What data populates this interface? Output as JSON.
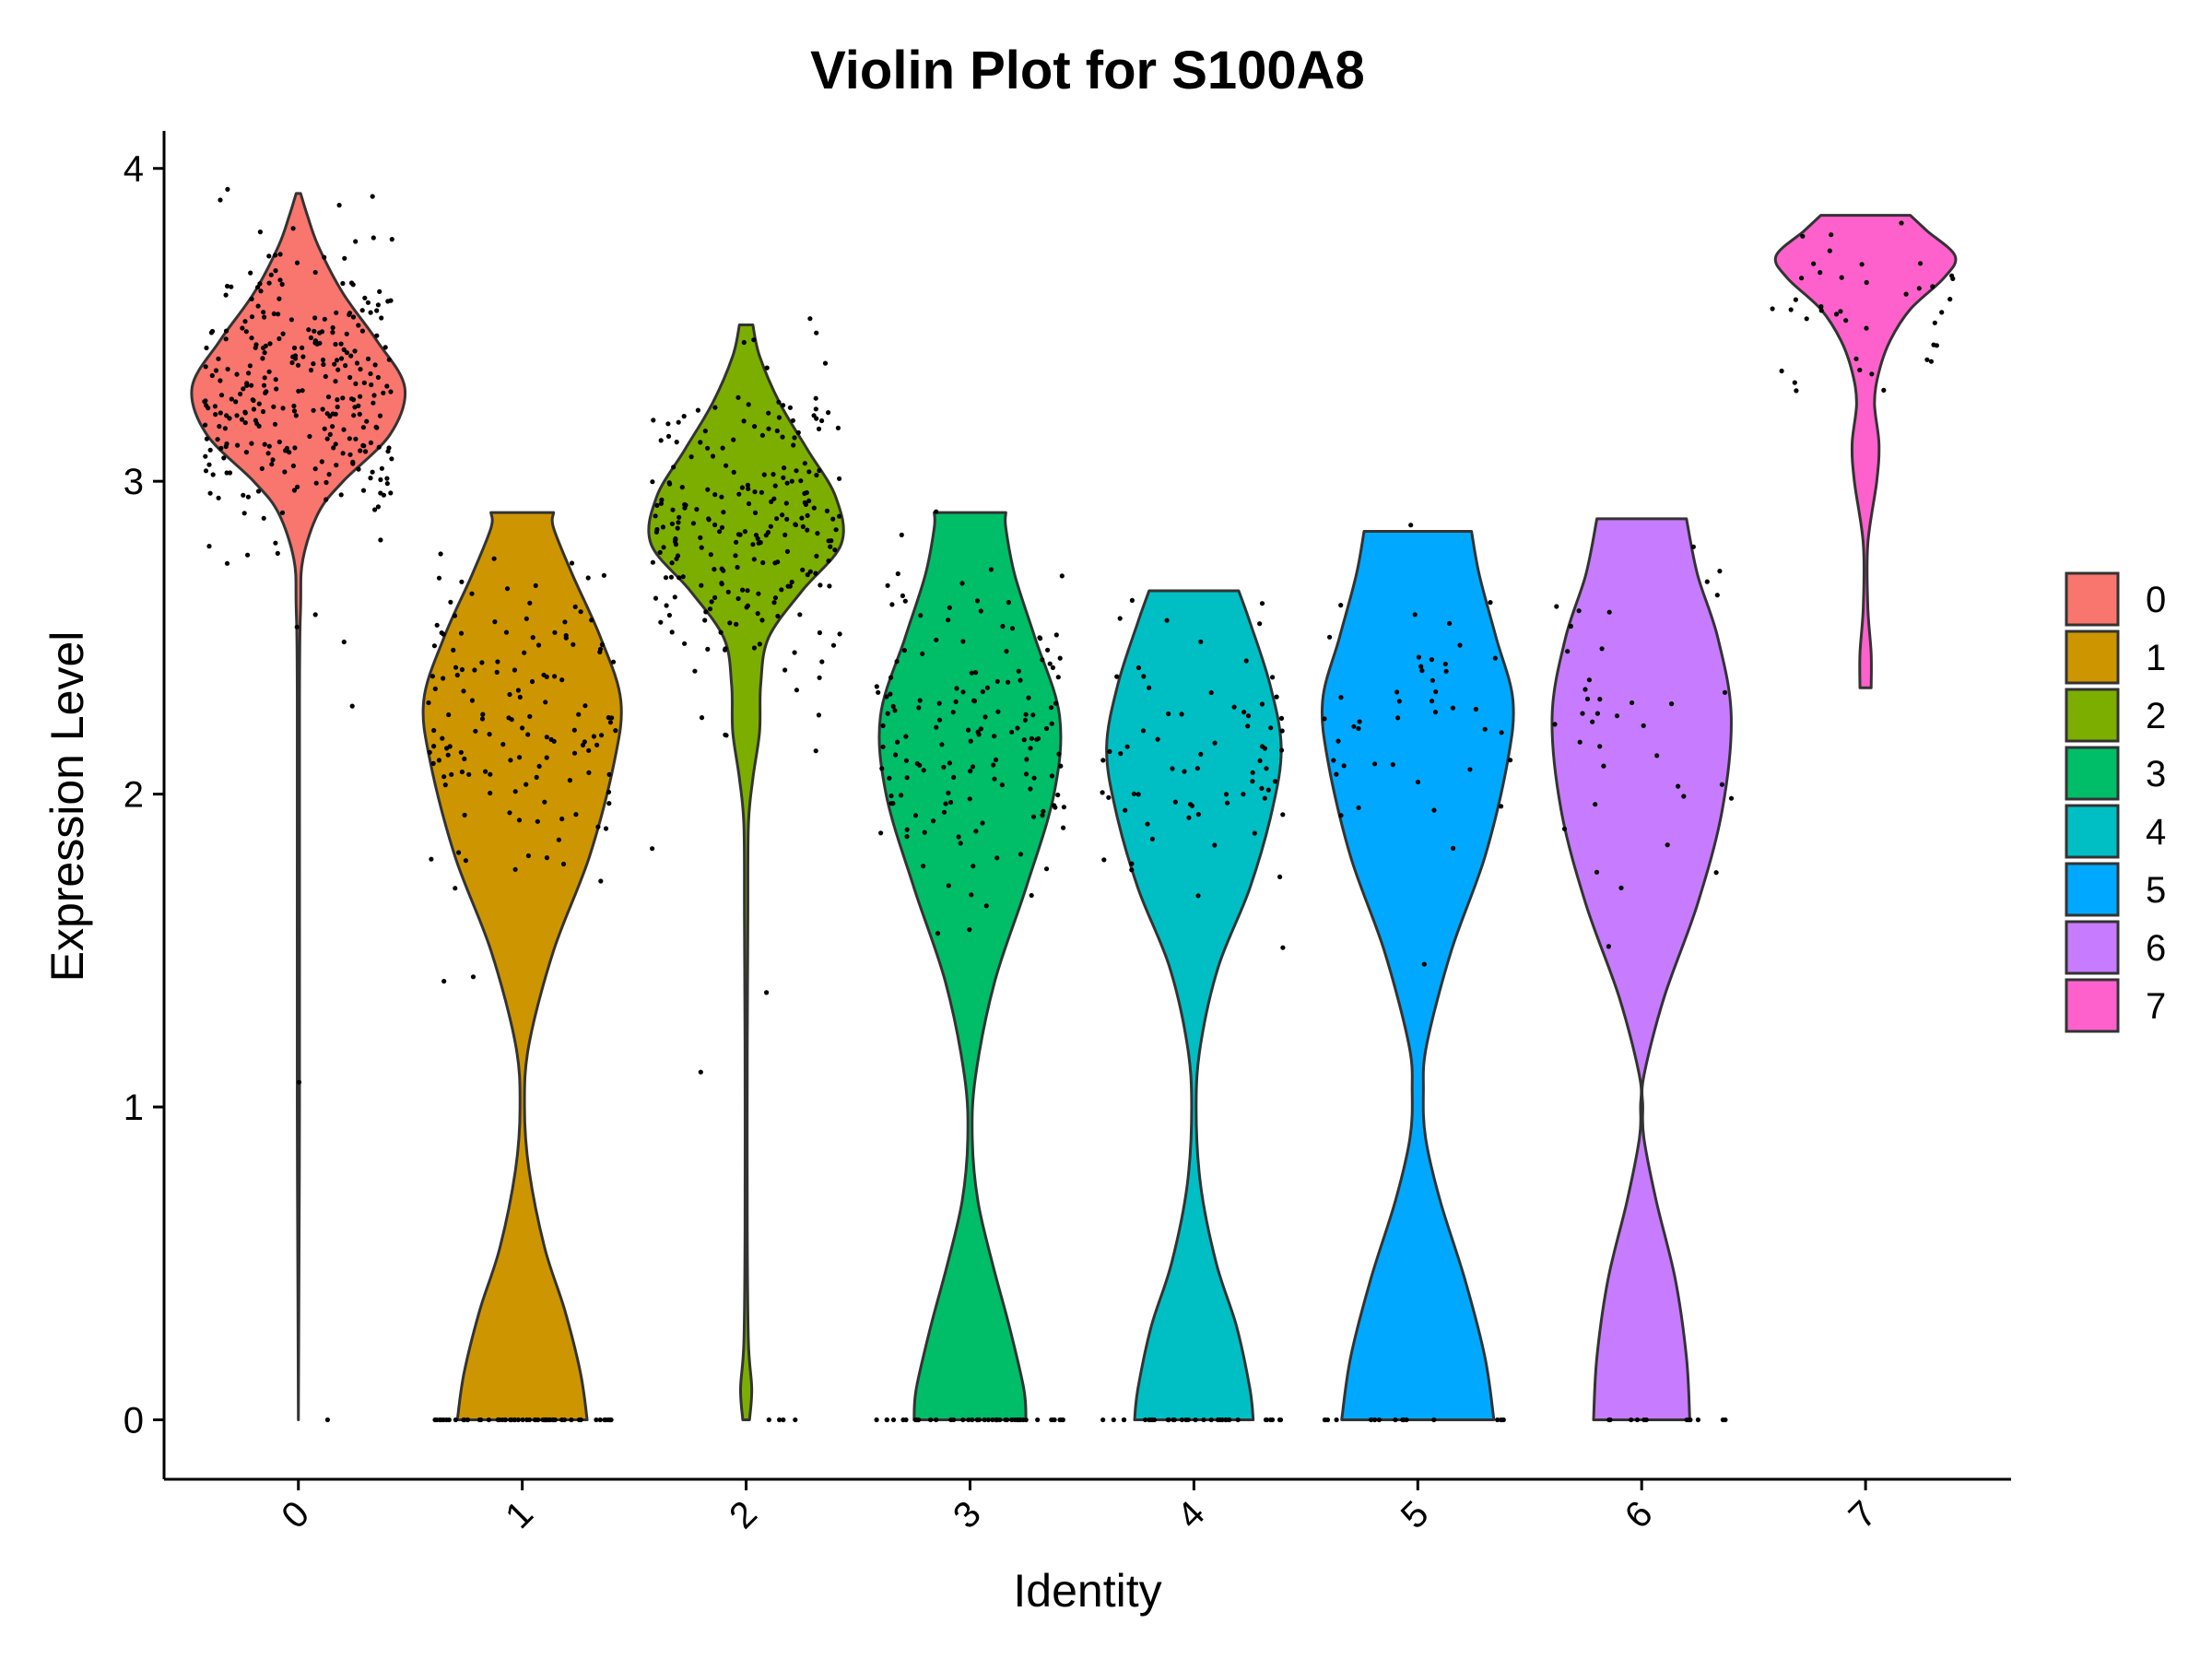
{
  "chart_data": {
    "type": "violin",
    "title": "Violin Plot for S100A8",
    "xlabel": "Identity",
    "ylabel": "Expression Level",
    "ylim": [
      -0.19,
      4.12
    ],
    "yticks": [
      "0",
      "1",
      "2",
      "3",
      "4"
    ],
    "grid": false,
    "legend_position": "right",
    "categories": [
      "0",
      "1",
      "2",
      "3",
      "4",
      "5",
      "6",
      "7"
    ],
    "colors": [
      "#F8766D",
      "#CD9600",
      "#7CAE00",
      "#00BE67",
      "#00BFC4",
      "#00A9FF",
      "#C77CFF",
      "#FF61CC"
    ],
    "violins": [
      {
        "name": "0",
        "min": 0.0,
        "max": 3.92,
        "profile": [
          [
            0.0,
            0.0
          ],
          [
            1.0,
            0.01
          ],
          [
            2.3,
            0.01
          ],
          [
            2.6,
            0.02
          ],
          [
            2.75,
            0.04
          ],
          [
            2.9,
            0.18
          ],
          [
            3.0,
            0.4
          ],
          [
            3.15,
            0.82
          ],
          [
            3.3,
            0.95
          ],
          [
            3.45,
            0.7
          ],
          [
            3.6,
            0.4
          ],
          [
            3.75,
            0.18
          ],
          [
            3.85,
            0.08
          ],
          [
            3.92,
            0.02
          ]
        ],
        "points": {
          "n_zero": 1,
          "n_spread": 300,
          "spread_center": 3.3,
          "spread_sd": 0.22,
          "n_tail": 4
        }
      },
      {
        "name": "1",
        "min": 0.0,
        "max": 2.9,
        "profile": [
          [
            0.0,
            0.58
          ],
          [
            0.15,
            0.52
          ],
          [
            0.35,
            0.38
          ],
          [
            0.55,
            0.2
          ],
          [
            0.8,
            0.06
          ],
          [
            1.0,
            0.02
          ],
          [
            1.2,
            0.06
          ],
          [
            1.5,
            0.28
          ],
          [
            1.8,
            0.6
          ],
          [
            2.1,
            0.82
          ],
          [
            2.3,
            0.88
          ],
          [
            2.5,
            0.7
          ],
          [
            2.7,
            0.45
          ],
          [
            2.85,
            0.28
          ],
          [
            2.9,
            0.28
          ]
        ],
        "points": {
          "n_zero": 60,
          "n_spread": 140,
          "spread_center": 2.25,
          "spread_sd": 0.25,
          "n_tail": 0
        }
      },
      {
        "name": "2",
        "min": 0.0,
        "max": 3.5,
        "profile": [
          [
            0.0,
            0.03
          ],
          [
            0.1,
            0.05
          ],
          [
            0.25,
            0.02
          ],
          [
            0.6,
            0.01
          ],
          [
            1.2,
            0.01
          ],
          [
            1.6,
            0.015
          ],
          [
            1.9,
            0.02
          ],
          [
            2.05,
            0.06
          ],
          [
            2.2,
            0.12
          ],
          [
            2.35,
            0.13
          ],
          [
            2.5,
            0.2
          ],
          [
            2.65,
            0.5
          ],
          [
            2.8,
            0.85
          ],
          [
            2.95,
            0.8
          ],
          [
            3.1,
            0.55
          ],
          [
            3.25,
            0.3
          ],
          [
            3.4,
            0.12
          ],
          [
            3.5,
            0.06
          ]
        ],
        "points": {
          "n_zero": 4,
          "n_spread": 230,
          "spread_center": 2.85,
          "spread_sd": 0.25,
          "n_tail": 4
        }
      },
      {
        "name": "3",
        "min": 0.0,
        "max": 2.9,
        "profile": [
          [
            0.0,
            0.5
          ],
          [
            0.1,
            0.48
          ],
          [
            0.3,
            0.35
          ],
          [
            0.5,
            0.2
          ],
          [
            0.7,
            0.07
          ],
          [
            0.9,
            0.02
          ],
          [
            1.1,
            0.05
          ],
          [
            1.4,
            0.22
          ],
          [
            1.7,
            0.5
          ],
          [
            2.0,
            0.75
          ],
          [
            2.25,
            0.8
          ],
          [
            2.5,
            0.58
          ],
          [
            2.7,
            0.4
          ],
          [
            2.85,
            0.32
          ],
          [
            2.9,
            0.32
          ]
        ],
        "points": {
          "n_zero": 45,
          "n_spread": 150,
          "spread_center": 2.15,
          "spread_sd": 0.28,
          "n_tail": 0
        }
      },
      {
        "name": "4",
        "min": 0.0,
        "max": 2.65,
        "profile": [
          [
            0.0,
            0.53
          ],
          [
            0.1,
            0.5
          ],
          [
            0.3,
            0.38
          ],
          [
            0.5,
            0.2
          ],
          [
            0.75,
            0.06
          ],
          [
            1.0,
            0.02
          ],
          [
            1.2,
            0.06
          ],
          [
            1.45,
            0.22
          ],
          [
            1.7,
            0.5
          ],
          [
            1.95,
            0.7
          ],
          [
            2.15,
            0.78
          ],
          [
            2.35,
            0.68
          ],
          [
            2.55,
            0.5
          ],
          [
            2.65,
            0.4
          ]
        ],
        "points": {
          "n_zero": 35,
          "n_spread": 70,
          "spread_center": 2.15,
          "spread_sd": 0.22,
          "n_tail": 0
        }
      },
      {
        "name": "5",
        "min": 0.0,
        "max": 2.84,
        "profile": [
          [
            0.0,
            0.68
          ],
          [
            0.2,
            0.6
          ],
          [
            0.45,
            0.42
          ],
          [
            0.7,
            0.2
          ],
          [
            0.9,
            0.07
          ],
          [
            1.05,
            0.05
          ],
          [
            1.2,
            0.08
          ],
          [
            1.5,
            0.3
          ],
          [
            1.8,
            0.6
          ],
          [
            2.1,
            0.8
          ],
          [
            2.3,
            0.85
          ],
          [
            2.5,
            0.7
          ],
          [
            2.7,
            0.55
          ],
          [
            2.84,
            0.48
          ]
        ],
        "points": {
          "n_zero": 15,
          "n_spread": 45,
          "spread_center": 2.3,
          "spread_sd": 0.25,
          "n_tail": 0
        }
      },
      {
        "name": "6",
        "min": 0.0,
        "max": 2.88,
        "profile": [
          [
            0.0,
            0.43
          ],
          [
            0.2,
            0.4
          ],
          [
            0.45,
            0.3
          ],
          [
            0.7,
            0.13
          ],
          [
            0.9,
            0.02
          ],
          [
            1.0,
            0.01
          ],
          [
            1.1,
            0.02
          ],
          [
            1.35,
            0.2
          ],
          [
            1.65,
            0.5
          ],
          [
            1.95,
            0.72
          ],
          [
            2.25,
            0.8
          ],
          [
            2.5,
            0.68
          ],
          [
            2.7,
            0.5
          ],
          [
            2.88,
            0.4
          ]
        ],
        "points": {
          "n_zero": 12,
          "n_spread": 38,
          "spread_center": 2.2,
          "spread_sd": 0.25,
          "n_tail": 0
        }
      },
      {
        "name": "7",
        "min": 2.34,
        "max": 3.85,
        "profile": [
          [
            2.34,
            0.05
          ],
          [
            2.45,
            0.05
          ],
          [
            2.6,
            0.02
          ],
          [
            2.8,
            0.02
          ],
          [
            3.0,
            0.1
          ],
          [
            3.12,
            0.12
          ],
          [
            3.25,
            0.08
          ],
          [
            3.35,
            0.12
          ],
          [
            3.45,
            0.22
          ],
          [
            3.55,
            0.4
          ],
          [
            3.65,
            0.7
          ],
          [
            3.72,
            0.8
          ],
          [
            3.8,
            0.55
          ],
          [
            3.85,
            0.4
          ]
        ],
        "points": {
          "n_zero": 0,
          "n_spread": 40,
          "spread_center": 3.6,
          "spread_sd": 0.17,
          "n_tail": 0
        }
      }
    ]
  }
}
